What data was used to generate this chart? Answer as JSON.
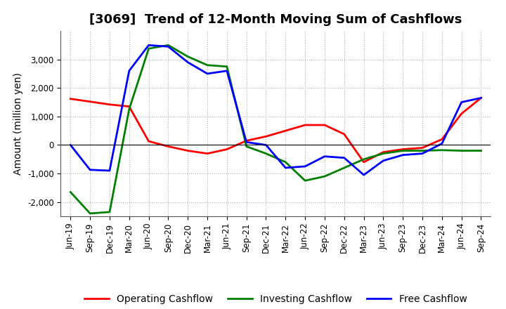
{
  "title": "[3069]  Trend of 12-Month Moving Sum of Cashflows",
  "ylabel": "Amount (million yen)",
  "x_labels": [
    "Jun-19",
    "Sep-19",
    "Dec-19",
    "Mar-20",
    "Jun-20",
    "Sep-20",
    "Dec-20",
    "Mar-21",
    "Jun-21",
    "Sep-21",
    "Dec-21",
    "Mar-22",
    "Jun-22",
    "Sep-22",
    "Dec-22",
    "Mar-23",
    "Jun-23",
    "Sep-23",
    "Dec-23",
    "Mar-24",
    "Jun-24",
    "Sep-24"
  ],
  "operating": [
    1620,
    1520,
    1420,
    1350,
    130,
    -50,
    -200,
    -300,
    -150,
    150,
    300,
    500,
    700,
    700,
    380,
    -600,
    -250,
    -150,
    -100,
    200,
    1100,
    1650
  ],
  "investing": [
    -1650,
    -2400,
    -2350,
    1250,
    3380,
    3500,
    3100,
    2800,
    2750,
    -50,
    -300,
    -600,
    -1250,
    -1100,
    -800,
    -500,
    -300,
    -200,
    -200,
    -180,
    -200,
    -200
  ],
  "free": [
    0,
    -870,
    -900,
    2600,
    3500,
    3450,
    2900,
    2500,
    2600,
    100,
    0,
    -800,
    -750,
    -400,
    -450,
    -1050,
    -550,
    -350,
    -300,
    50,
    1500,
    1650
  ],
  "ylim": [
    -2500,
    4000
  ],
  "yticks": [
    -2000,
    -1000,
    0,
    1000,
    2000,
    3000
  ],
  "operating_color": "#ff0000",
  "investing_color": "#008000",
  "free_color": "#0000ff",
  "linewidth": 2.0,
  "bg_color": "#ffffff",
  "plot_bg_color": "#ffffff",
  "grid_color": "#b0b0b0",
  "title_fontsize": 13,
  "label_fontsize": 10,
  "tick_fontsize": 8.5,
  "legend_fontsize": 10
}
